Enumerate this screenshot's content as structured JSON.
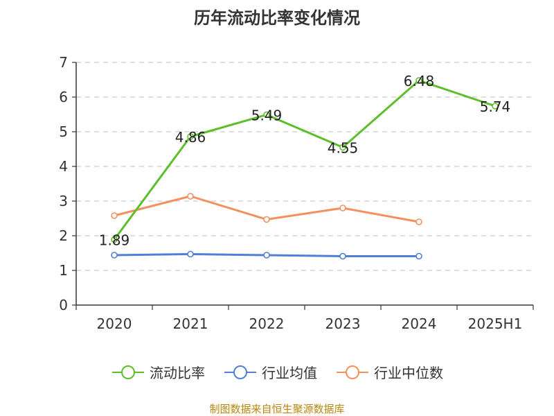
{
  "chart_data": {
    "type": "line",
    "title": "历年流动比率变化情况",
    "categories": [
      "2020",
      "2021",
      "2022",
      "2023",
      "2024",
      "2025H1"
    ],
    "ylim": [
      0,
      7
    ],
    "yticks": [
      0,
      1,
      2,
      3,
      4,
      5,
      6,
      7
    ],
    "grid": true,
    "legend_placement": "bottom",
    "series": [
      {
        "name": "流动比率",
        "color": "#5cbf2a",
        "values": [
          1.89,
          4.86,
          5.49,
          4.55,
          6.48,
          5.74
        ],
        "value_labels": [
          "1.89",
          "4.86",
          "5.49",
          "4.55",
          "6.48",
          "5.74"
        ]
      },
      {
        "name": "行业均值",
        "color": "#4f7fd6",
        "values": [
          1.44,
          1.47,
          1.44,
          1.41,
          1.41,
          null
        ]
      },
      {
        "name": "行业中位数",
        "color": "#f4905e",
        "values": [
          2.58,
          3.14,
          2.47,
          2.8,
          2.4,
          null
        ]
      }
    ]
  },
  "source": "制图数据来自恒生聚源数据库"
}
